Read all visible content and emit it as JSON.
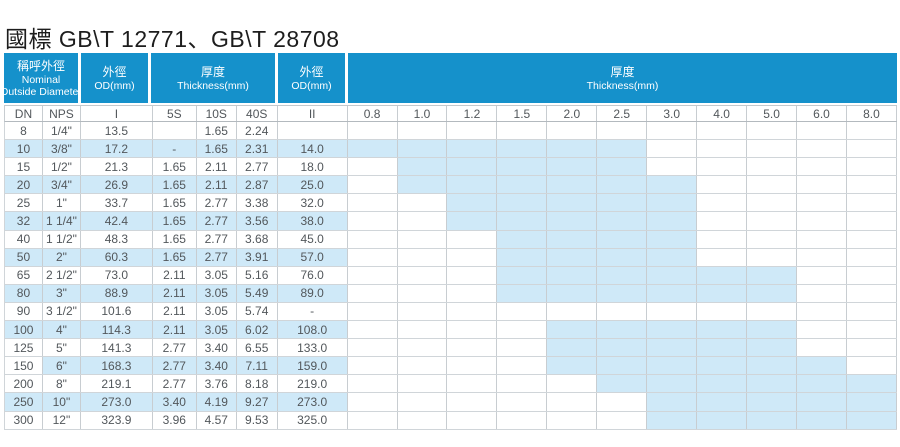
{
  "title": "國標 GB\\T 12771、GB\\T 28708",
  "colors": {
    "header_blue": "#1591cb",
    "highlight_blue": "#cfe9f8",
    "grid_gray": "#c8cdd1"
  },
  "table": {
    "groups": [
      {
        "zh": "稱呼外徑",
        "en": "Nominal",
        "en2": "Outside Diameter"
      },
      {
        "zh": "外徑",
        "en": "OD(mm)"
      },
      {
        "zh": "厚度",
        "en": "Thickness(mm)"
      },
      {
        "zh": "外徑",
        "en": "OD(mm)"
      },
      {
        "zh": "厚度",
        "en": "Thickness(mm)"
      }
    ],
    "subheaders": [
      "DN",
      "NPS",
      "I",
      "5S",
      "10S",
      "40S",
      "II"
    ],
    "thickness_columns": [
      "0.8",
      "1.0",
      "1.2",
      "1.5",
      "2.0",
      "2.5",
      "3.0",
      "4.0",
      "5.0",
      "6.0",
      "8.0"
    ],
    "rows": [
      {
        "dn": "8",
        "nps": "1/4\"",
        "od1": "13.5",
        "s5": "",
        "s10": "1.65",
        "s40": "2.24",
        "od2": "",
        "shaded_from": "",
        "shaded_to": ""
      },
      {
        "dn": "10",
        "nps": "3/8\"",
        "od1": "17.2",
        "s5": "-",
        "s10": "1.65",
        "s40": "2.31",
        "od2": "14.0",
        "shaded_from": "0.8",
        "shaded_to": "2.5"
      },
      {
        "dn": "15",
        "nps": "1/2\"",
        "od1": "21.3",
        "s5": "1.65",
        "s10": "2.11",
        "s40": "2.77",
        "od2": "18.0",
        "shaded_from": "1.0",
        "shaded_to": "2.5"
      },
      {
        "dn": "20",
        "nps": "3/4\"",
        "od1": "26.9",
        "s5": "1.65",
        "s10": "2.11",
        "s40": "2.87",
        "od2": "25.0",
        "shaded_from": "1.0",
        "shaded_to": "3.0"
      },
      {
        "dn": "25",
        "nps": "1\"",
        "od1": "33.7",
        "s5": "1.65",
        "s10": "2.77",
        "s40": "3.38",
        "od2": "32.0",
        "shaded_from": "1.2",
        "shaded_to": "3.0"
      },
      {
        "dn": "32",
        "nps": "1 1/4\"",
        "od1": "42.4",
        "s5": "1.65",
        "s10": "2.77",
        "s40": "3.56",
        "od2": "38.0",
        "shaded_from": "1.2",
        "shaded_to": "3.0"
      },
      {
        "dn": "40",
        "nps": "1 1/2\"",
        "od1": "48.3",
        "s5": "1.65",
        "s10": "2.77",
        "s40": "3.68",
        "od2": "45.0",
        "shaded_from": "1.5",
        "shaded_to": "3.0"
      },
      {
        "dn": "50",
        "nps": "2\"",
        "od1": "60.3",
        "s5": "1.65",
        "s10": "2.77",
        "s40": "3.91",
        "od2": "57.0",
        "shaded_from": "1.5",
        "shaded_to": "3.0"
      },
      {
        "dn": "65",
        "nps": "2 1/2\"",
        "od1": "73.0",
        "s5": "2.11",
        "s10": "3.05",
        "s40": "5.16",
        "od2": "76.0",
        "shaded_from": "1.5",
        "shaded_to": "5.0"
      },
      {
        "dn": "80",
        "nps": "3\"",
        "od1": "88.9",
        "s5": "2.11",
        "s10": "3.05",
        "s40": "5.49",
        "od2": "89.0",
        "shaded_from": "1.5",
        "shaded_to": "5.0"
      },
      {
        "dn": "90",
        "nps": "3 1/2\"",
        "od1": "101.6",
        "s5": "2.11",
        "s10": "3.05",
        "s40": "5.74",
        "od2": "-",
        "shaded_from": "",
        "shaded_to": ""
      },
      {
        "dn": "100",
        "nps": "4\"",
        "od1": "114.3",
        "s5": "2.11",
        "s10": "3.05",
        "s40": "6.02",
        "od2": "108.0",
        "shaded_from": "2.0",
        "shaded_to": "5.0"
      },
      {
        "dn": "125",
        "nps": "5\"",
        "od1": "141.3",
        "s5": "2.77",
        "s10": "3.40",
        "s40": "6.55",
        "od2": "133.0",
        "shaded_from": "2.0",
        "shaded_to": "5.0"
      },
      {
        "dn": "150",
        "nps": "6\"",
        "od1": "168.3",
        "s5": "2.77",
        "s10": "3.40",
        "s40": "7.11",
        "od2": "159.0",
        "shaded_from": "2.0",
        "shaded_to": "6.0",
        "dn_cell_unstriped": true
      },
      {
        "dn": "200",
        "nps": "8\"",
        "od1": "219.1",
        "s5": "2.77",
        "s10": "3.76",
        "s40": "8.18",
        "od2": "219.0",
        "shaded_from": "2.5",
        "shaded_to": "8.0"
      },
      {
        "dn": "250",
        "nps": "10\"",
        "od1": "273.0",
        "s5": "3.40",
        "s10": "4.19",
        "s40": "9.27",
        "od2": "273.0",
        "shaded_from": "3.0",
        "shaded_to": "8.0"
      },
      {
        "dn": "300",
        "nps": "12\"",
        "od1": "323.9",
        "s5": "3.96",
        "s10": "4.57",
        "s40": "9.53",
        "od2": "325.0",
        "shaded_from": "3.0",
        "shaded_to": "8.0"
      }
    ]
  }
}
